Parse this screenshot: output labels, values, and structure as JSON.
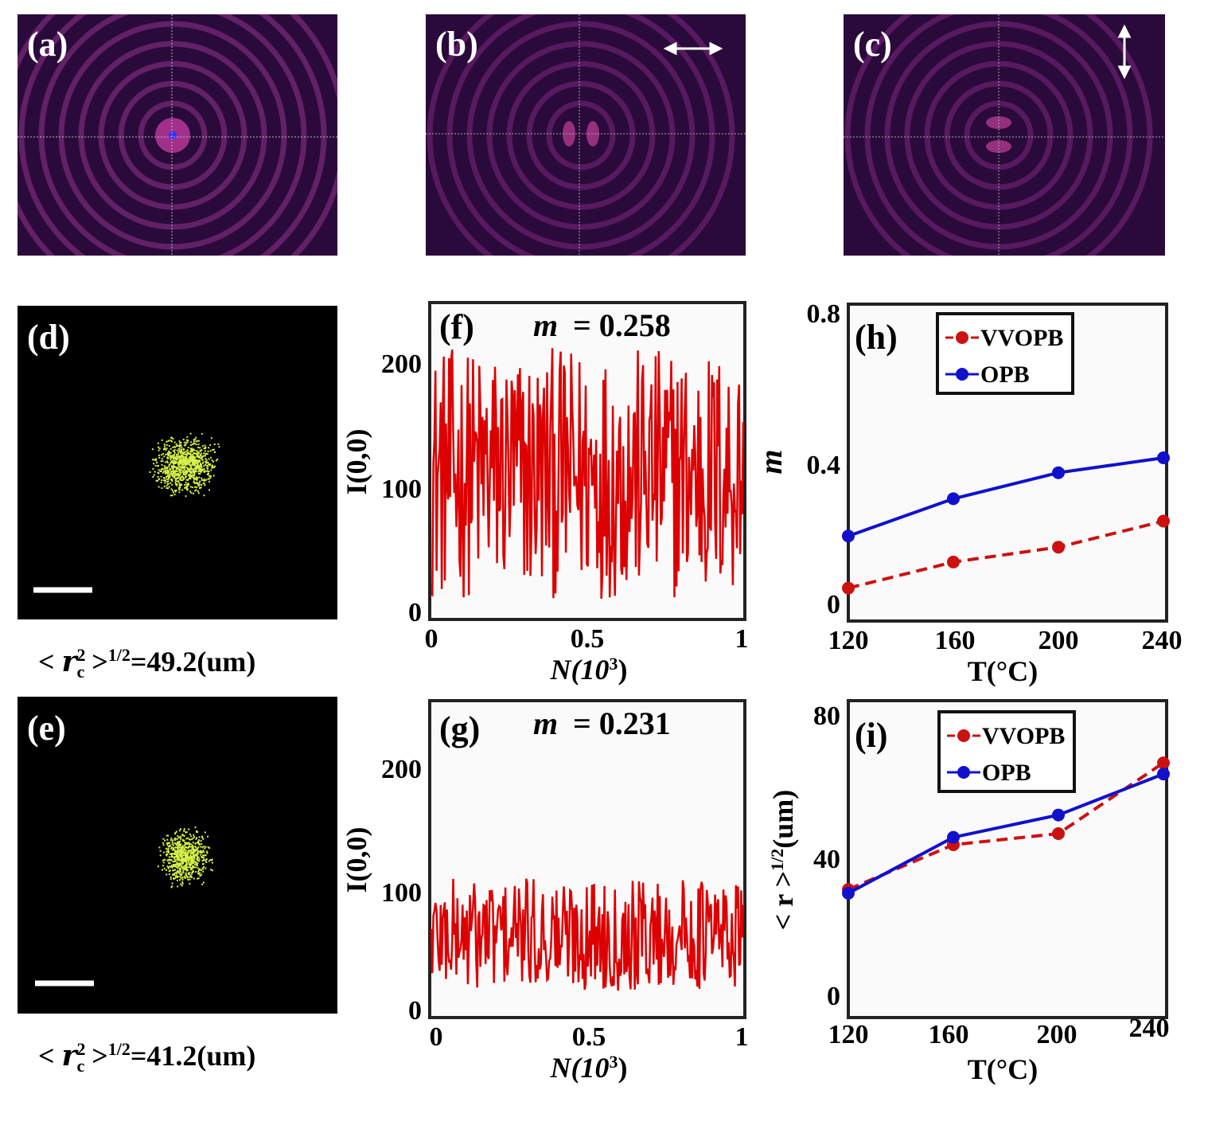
{
  "colors": {
    "vvopb": "#cc1111",
    "opb": "#1111cc",
    "trace": "#dd0000",
    "beam_bg": "#2a0a3a",
    "ring": "#8a2a8a",
    "speckle": "#d7f24a"
  },
  "top_panels": [
    {
      "tag": "(a)",
      "arrow": "none"
    },
    {
      "tag": "(b)",
      "arrow": "horizontal-arrow"
    },
    {
      "tag": "(c)",
      "arrow": "vertical-arrow"
    }
  ],
  "speckle_panels": [
    {
      "tag": "(d)",
      "caption_prefix": "< ",
      "caption_var": "r",
      "caption_sup": "2",
      "caption_sub": "c",
      "caption_suffix": " >",
      "caption_exp": "1/2",
      "caption_value": "=49.2(um)"
    },
    {
      "tag": "(e)",
      "caption_prefix": "< ",
      "caption_var": "r",
      "caption_sup": "2",
      "caption_sub": "c",
      "caption_suffix": " >",
      "caption_exp": "1/2",
      "caption_value": "=41.2(um)"
    }
  ],
  "chart_data": [
    {
      "id": "f",
      "type": "line",
      "tag": "(f)",
      "annotation": "m",
      "annotation_value": "= 0.258",
      "xlabel": "N(10",
      "xlabel_exp": "3",
      "xlabel_close": ")",
      "ylabel": "I(0,0)",
      "xlim": [
        0,
        1
      ],
      "ylim": [
        0,
        250
      ],
      "yticks": [
        "0",
        "100",
        "200"
      ],
      "xticks": [
        "0",
        "0.5",
        "1"
      ],
      "trace_mean": 115,
      "trace_amplitude": 100,
      "trace_count": 300
    },
    {
      "id": "g",
      "type": "line",
      "tag": "(g)",
      "annotation": "m",
      "annotation_value": "= 0.231",
      "xlabel": "N(10",
      "xlabel_exp": "3",
      "xlabel_close": ")",
      "ylabel": "I(0,0)",
      "xlim": [
        0,
        1
      ],
      "ylim": [
        0,
        250
      ],
      "yticks": [
        "0",
        "100",
        "200"
      ],
      "xticks": [
        "0",
        "0.5",
        "1"
      ],
      "trace_mean": 65,
      "trace_amplitude": 45,
      "trace_count": 300
    },
    {
      "id": "h",
      "type": "line",
      "tag": "(h)",
      "xlabel": "T(°C)",
      "ylabel": "m",
      "xlim": [
        120,
        240
      ],
      "ylim": [
        0,
        0.8
      ],
      "xticks": [
        "120",
        "160",
        "200",
        "240"
      ],
      "yticks": [
        "0",
        "0.4",
        "0.8"
      ],
      "categories": [
        120,
        160,
        200,
        240
      ],
      "legend": [
        "VVOPB",
        "OPB"
      ],
      "series": [
        {
          "name": "VVOPB",
          "values": [
            0.05,
            0.12,
            0.16,
            0.23
          ]
        },
        {
          "name": "OPB",
          "values": [
            0.19,
            0.29,
            0.36,
            0.4
          ]
        }
      ]
    },
    {
      "id": "i",
      "type": "line",
      "tag": "(i)",
      "xlabel": "T(°C)",
      "ylabel": "< r",
      "ylabel_tail": " >",
      "ylabel_exp": "1/2",
      "ylabel_unit": "(um)",
      "xlim": [
        120,
        240
      ],
      "ylim": [
        0,
        80
      ],
      "xticks": [
        "120",
        "160",
        "200",
        "240"
      ],
      "yticks": [
        "0",
        "40",
        "80"
      ],
      "categories": [
        120,
        160,
        200,
        240
      ],
      "legend": [
        "VVOPB",
        "OPB"
      ],
      "series": [
        {
          "name": "VVOPB",
          "values": [
            31,
            43,
            46,
            65
          ]
        },
        {
          "name": "OPB",
          "values": [
            30,
            45,
            51,
            62
          ]
        }
      ]
    }
  ]
}
